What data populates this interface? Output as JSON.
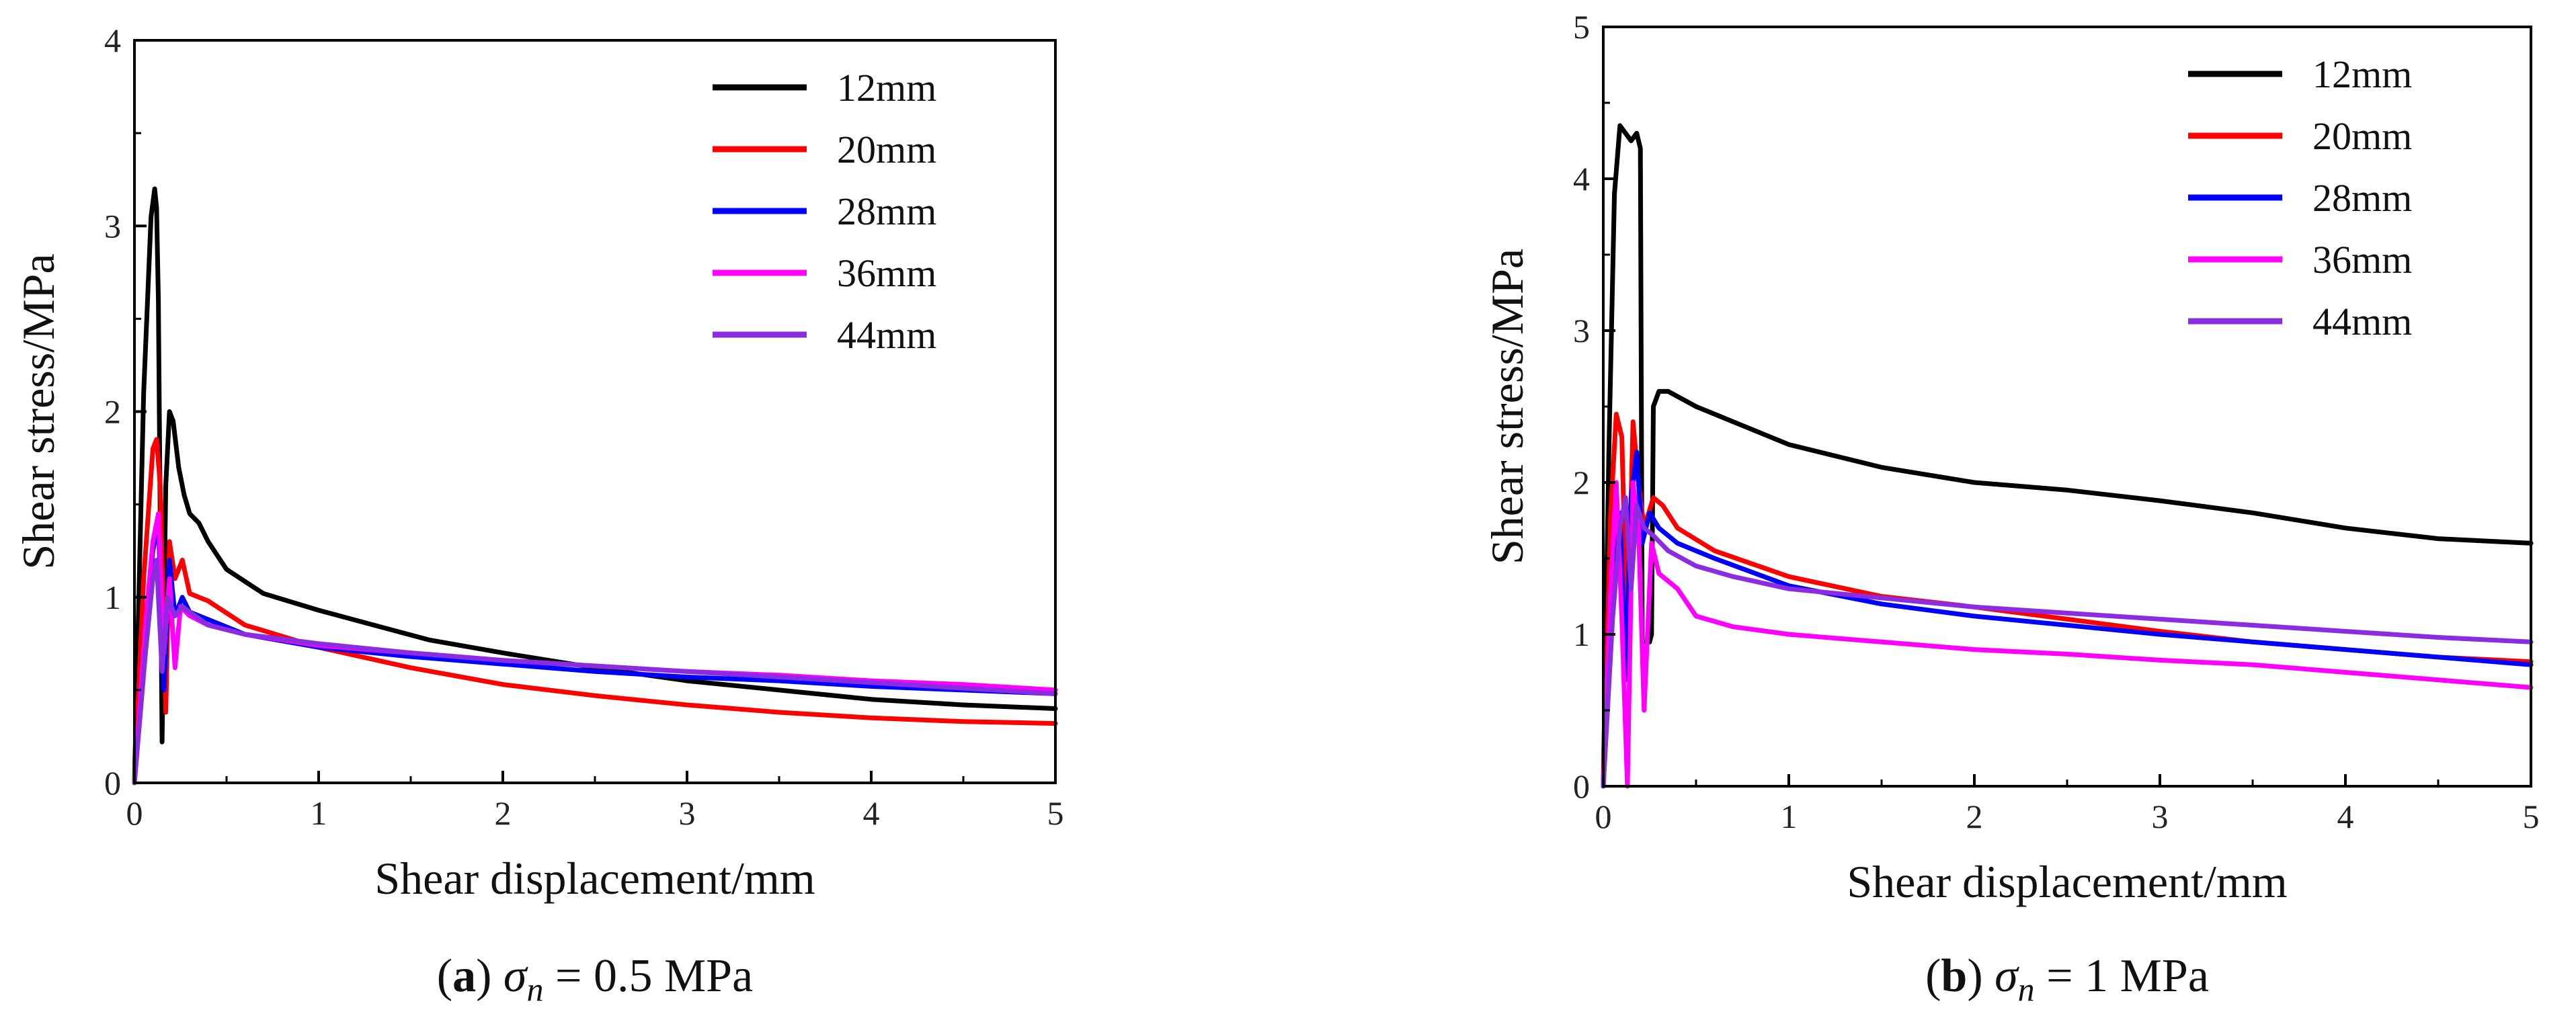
{
  "chart_data": [
    {
      "type": "line",
      "panel_letter": "a",
      "caption_symbol": "σ",
      "caption_subscript": "n",
      "caption_equals": "=",
      "caption_value": "0.5 MPa",
      "xlabel": "Shear displacement/mm",
      "ylabel": "Shear stress/MPa",
      "xlim": [
        0,
        5
      ],
      "ylim": [
        0,
        4
      ],
      "xticks": [
        0,
        1,
        2,
        3,
        4,
        5
      ],
      "yticks": [
        0,
        1,
        2,
        3,
        4
      ],
      "legend_position": "top-right",
      "series": [
        {
          "name": "12mm",
          "color": "#000000",
          "x": [
            0,
            0.05,
            0.09,
            0.11,
            0.12,
            0.13,
            0.15,
            0.17,
            0.19,
            0.21,
            0.24,
            0.27,
            0.3,
            0.35,
            0.4,
            0.5,
            0.7,
            1.0,
            1.3,
            1.6,
            2.0,
            2.5,
            3.0,
            3.5,
            4.0,
            4.5,
            5.0
          ],
          "y": [
            0,
            2.1,
            3.05,
            3.2,
            3.1,
            2.6,
            0.22,
            1.6,
            2.0,
            1.95,
            1.7,
            1.55,
            1.45,
            1.4,
            1.3,
            1.15,
            1.02,
            0.93,
            0.85,
            0.77,
            0.7,
            0.62,
            0.55,
            0.5,
            0.45,
            0.42,
            0.4
          ]
        },
        {
          "name": "20mm",
          "color": "#ff0000",
          "x": [
            0,
            0.05,
            0.1,
            0.12,
            0.14,
            0.17,
            0.19,
            0.22,
            0.26,
            0.3,
            0.4,
            0.6,
            1.0,
            1.5,
            2.0,
            2.5,
            3.0,
            3.5,
            4.0,
            4.5,
            5.0
          ],
          "y": [
            0,
            1.1,
            1.8,
            1.85,
            1.6,
            0.38,
            1.3,
            1.1,
            1.2,
            1.02,
            0.98,
            0.85,
            0.73,
            0.62,
            0.53,
            0.47,
            0.42,
            0.38,
            0.35,
            0.33,
            0.32
          ]
        },
        {
          "name": "28mm",
          "color": "#0000ff",
          "x": [
            0,
            0.06,
            0.1,
            0.13,
            0.16,
            0.19,
            0.22,
            0.26,
            0.3,
            0.4,
            0.6,
            1.0,
            1.5,
            2.0,
            2.5,
            3.0,
            3.5,
            4.0,
            4.5,
            5.0
          ],
          "y": [
            0,
            0.8,
            1.25,
            1.4,
            0.5,
            1.2,
            0.9,
            1.0,
            0.92,
            0.88,
            0.8,
            0.73,
            0.68,
            0.64,
            0.6,
            0.57,
            0.55,
            0.52,
            0.5,
            0.48
          ]
        },
        {
          "name": "36mm",
          "color": "#ff00ff",
          "x": [
            0,
            0.06,
            0.1,
            0.13,
            0.16,
            0.19,
            0.22,
            0.25,
            0.3,
            0.4,
            0.6,
            1.0,
            1.5,
            2.0,
            2.5,
            3.0,
            3.5,
            4.0,
            4.5,
            5.0
          ],
          "y": [
            0,
            0.85,
            1.3,
            1.45,
            0.7,
            1.1,
            0.62,
            0.95,
            0.9,
            0.85,
            0.8,
            0.74,
            0.7,
            0.66,
            0.63,
            0.6,
            0.58,
            0.55,
            0.53,
            0.5
          ]
        },
        {
          "name": "44mm",
          "color": "#8b2be2",
          "x": [
            0,
            0.06,
            0.1,
            0.12,
            0.15,
            0.18,
            0.22,
            0.26,
            0.3,
            0.4,
            0.6,
            1.0,
            1.5,
            2.0,
            2.5,
            3.0,
            3.5,
            4.0,
            4.5,
            5.0
          ],
          "y": [
            0,
            0.7,
            1.1,
            1.2,
            0.6,
            1.0,
            0.9,
            0.95,
            0.92,
            0.85,
            0.8,
            0.75,
            0.7,
            0.66,
            0.63,
            0.6,
            0.57,
            0.54,
            0.51,
            0.48
          ]
        }
      ]
    },
    {
      "type": "line",
      "panel_letter": "b",
      "caption_symbol": "σ",
      "caption_subscript": "n",
      "caption_equals": "=",
      "caption_value": "1 MPa",
      "xlabel": "Shear displacement/mm",
      "ylabel": "Shear stress/MPa",
      "xlim": [
        0,
        5
      ],
      "ylim": [
        0,
        5
      ],
      "xticks": [
        0,
        1,
        2,
        3,
        4,
        5
      ],
      "yticks": [
        0,
        1,
        2,
        3,
        4,
        5
      ],
      "legend_position": "top-right",
      "series": [
        {
          "name": "12mm",
          "color": "#000000",
          "x": [
            0,
            0.03,
            0.06,
            0.09,
            0.12,
            0.15,
            0.18,
            0.2,
            0.21,
            0.25,
            0.26,
            0.27,
            0.3,
            0.35,
            0.5,
            0.7,
            1.0,
            1.5,
            2.0,
            2.5,
            3.0,
            3.5,
            4.0,
            4.5,
            5.0
          ],
          "y": [
            0,
            2.2,
            3.9,
            4.35,
            4.3,
            4.25,
            4.3,
            4.2,
            0.95,
            0.95,
            1.0,
            2.5,
            2.6,
            2.6,
            2.5,
            2.4,
            2.25,
            2.1,
            2.0,
            1.95,
            1.88,
            1.8,
            1.7,
            1.63,
            1.6
          ]
        },
        {
          "name": "20mm",
          "color": "#ff0000",
          "x": [
            0,
            0.04,
            0.07,
            0.1,
            0.13,
            0.16,
            0.19,
            0.22,
            0.27,
            0.32,
            0.4,
            0.6,
            1.0,
            1.5,
            2.0,
            2.5,
            3.0,
            3.5,
            4.0,
            4.5,
            5.0
          ],
          "y": [
            0,
            1.8,
            2.45,
            2.3,
            0.9,
            2.4,
            2.0,
            1.7,
            1.9,
            1.85,
            1.7,
            1.55,
            1.38,
            1.25,
            1.18,
            1.1,
            1.02,
            0.95,
            0.9,
            0.85,
            0.82
          ]
        },
        {
          "name": "28mm",
          "color": "#0000ff",
          "x": [
            0,
            0.05,
            0.09,
            0.12,
            0.15,
            0.18,
            0.21,
            0.25,
            0.3,
            0.4,
            0.6,
            1.0,
            1.5,
            2.0,
            2.5,
            3.0,
            3.5,
            4.0,
            4.5,
            5.0
          ],
          "y": [
            0,
            1.2,
            1.8,
            0.7,
            1.9,
            2.2,
            1.6,
            1.8,
            1.7,
            1.6,
            1.5,
            1.32,
            1.2,
            1.12,
            1.06,
            1.0,
            0.95,
            0.9,
            0.85,
            0.8
          ]
        },
        {
          "name": "36mm",
          "color": "#ff00ff",
          "x": [
            0,
            0.04,
            0.07,
            0.1,
            0.13,
            0.16,
            0.19,
            0.22,
            0.26,
            0.3,
            0.4,
            0.5,
            0.7,
            1.0,
            1.5,
            2.0,
            2.5,
            3.0,
            3.5,
            4.0,
            4.5,
            5.0
          ],
          "y": [
            0,
            1.3,
            2.0,
            1.1,
            0.0,
            2.0,
            1.7,
            0.5,
            1.6,
            1.4,
            1.3,
            1.12,
            1.05,
            1.0,
            0.95,
            0.9,
            0.87,
            0.83,
            0.8,
            0.75,
            0.7,
            0.65
          ]
        },
        {
          "name": "44mm",
          "color": "#8b2be2",
          "x": [
            0,
            0.05,
            0.09,
            0.12,
            0.15,
            0.18,
            0.22,
            0.27,
            0.35,
            0.5,
            0.7,
            1.0,
            1.5,
            2.0,
            2.5,
            3.0,
            3.5,
            4.0,
            4.5,
            5.0
          ],
          "y": [
            0,
            1.1,
            1.7,
            1.9,
            1.3,
            1.85,
            1.7,
            1.65,
            1.55,
            1.45,
            1.38,
            1.3,
            1.24,
            1.18,
            1.14,
            1.1,
            1.06,
            1.02,
            0.98,
            0.95
          ]
        }
      ]
    }
  ]
}
